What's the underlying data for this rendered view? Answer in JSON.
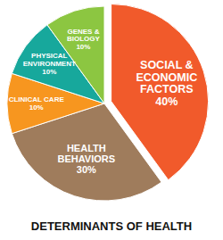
{
  "chart_data": {
    "type": "pie",
    "title": "DETERMINANTS OF HEALTH",
    "categories": [
      "SOCIAL & ECONOMIC FACTORS",
      "HEALTH BEHAVIORS",
      "CLINICAL CARE",
      "PHYSICAL ENVIRONMENT",
      "GENES & BIOLOGY"
    ],
    "values": [
      40,
      30,
      10,
      10,
      10
    ],
    "value_labels": [
      "40%",
      "30%",
      "10%",
      "10%",
      "10%"
    ],
    "colors": [
      "#f15a2b",
      "#9f7c5c",
      "#f7961f",
      "#17a89c",
      "#8cc641"
    ],
    "data_labels": true
  }
}
